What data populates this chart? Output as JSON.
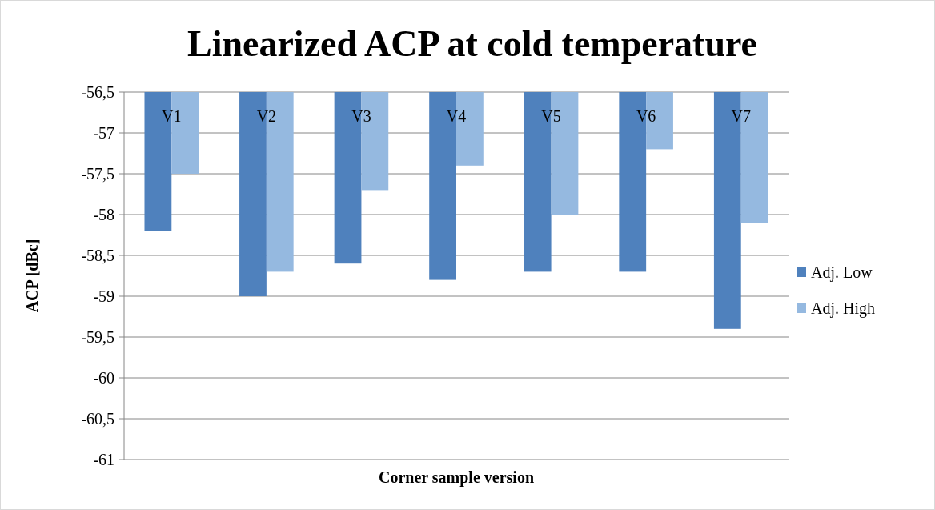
{
  "chart_data": {
    "type": "bar",
    "title": "Linearized ACP at cold temperature",
    "xlabel": "Corner sample version",
    "ylabel": "ACP [dBc]",
    "categories": [
      "V1",
      "V2",
      "V3",
      "V4",
      "V5",
      "V6",
      "V7"
    ],
    "series": [
      {
        "name": "Adj. Low",
        "color": "#4f81bd",
        "values": [
          -58.2,
          -59.0,
          -58.6,
          -58.8,
          -58.7,
          -58.7,
          -59.4
        ]
      },
      {
        "name": "Adj. High",
        "color": "#95b9e0",
        "values": [
          -57.5,
          -58.7,
          -57.7,
          -57.4,
          -58.0,
          -57.2,
          -58.1
        ]
      }
    ],
    "ylim": [
      -61,
      -56.5
    ],
    "yticks": [
      {
        "value": -61,
        "label": "-61"
      },
      {
        "value": -60.5,
        "label": "-60,5"
      },
      {
        "value": -60,
        "label": "-60"
      },
      {
        "value": -59.5,
        "label": "-59,5"
      },
      {
        "value": -59,
        "label": "-59"
      },
      {
        "value": -58.5,
        "label": "-58,5"
      },
      {
        "value": -58,
        "label": "-58"
      },
      {
        "value": -57.5,
        "label": "-57,5"
      },
      {
        "value": -57,
        "label": "-57"
      },
      {
        "value": -56.5,
        "label": "-56,5"
      }
    ],
    "grid": "y",
    "legend": "right"
  }
}
